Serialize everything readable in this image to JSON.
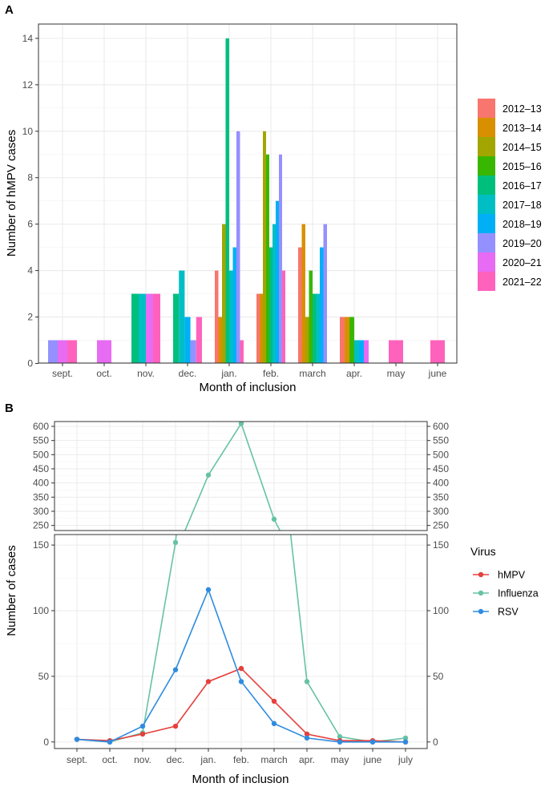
{
  "chart_data": [
    {
      "panel": "A",
      "type": "bar",
      "xlabel": "Month of inclusion",
      "ylabel": "Number of hMPV cases",
      "ylim": [
        0,
        14.6
      ],
      "yticks": [
        0,
        2,
        4,
        6,
        8,
        10,
        12,
        14
      ],
      "categories": [
        "sept.",
        "oct.",
        "nov.",
        "dec.",
        "jan.",
        "feb.",
        "march",
        "apr.",
        "may",
        "june"
      ],
      "series": [
        {
          "name": "2012–13",
          "color": "#F8766D",
          "values": [
            0,
            0,
            0,
            0,
            4,
            3,
            5,
            2,
            0,
            0
          ]
        },
        {
          "name": "2013–14",
          "color": "#D89000",
          "values": [
            0,
            0,
            0,
            0,
            2,
            3,
            6,
            2,
            0,
            0
          ]
        },
        {
          "name": "2014–15",
          "color": "#A3A500",
          "values": [
            0,
            0,
            0,
            0,
            6,
            10,
            2,
            0,
            0,
            0
          ]
        },
        {
          "name": "2015–16",
          "color": "#39B600",
          "values": [
            0,
            0,
            0,
            0,
            0,
            9,
            4,
            2,
            0,
            0
          ]
        },
        {
          "name": "2016–17",
          "color": "#00BF7D",
          "values": [
            0,
            0,
            3,
            3,
            14,
            5,
            3,
            0,
            0,
            0
          ]
        },
        {
          "name": "2017–18",
          "color": "#00BFC4",
          "values": [
            0,
            0,
            3,
            4,
            4,
            6,
            3,
            1,
            0,
            0
          ]
        },
        {
          "name": "2018–19",
          "color": "#00B0F6",
          "values": [
            0,
            0,
            0,
            2,
            5,
            7,
            5,
            1,
            0,
            0
          ]
        },
        {
          "name": "2019–20",
          "color": "#9590FF",
          "values": [
            1,
            0,
            0,
            1,
            10,
            9,
            6,
            0,
            0,
            0
          ]
        },
        {
          "name": "2020–21",
          "color": "#E76BF3",
          "values": [
            1,
            1,
            3,
            0,
            0,
            0,
            0,
            1,
            0,
            0
          ]
        },
        {
          "name": "2021–22",
          "color": "#FF62BC",
          "values": [
            1,
            0,
            3,
            2,
            1,
            4,
            0,
            0,
            1,
            1
          ]
        }
      ]
    },
    {
      "panel": "B",
      "type": "line",
      "xlabel": "Month of inclusion",
      "ylabel": "Number of cases",
      "legend_title": "Virus",
      "categories": [
        "sept.",
        "oct.",
        "nov.",
        "dec.",
        "jan.",
        "feb.",
        "march",
        "apr.",
        "may",
        "june",
        "july"
      ],
      "upper_ylim": [
        232,
        617
      ],
      "upper_yticks": [
        250,
        300,
        350,
        400,
        450,
        500,
        550,
        600
      ],
      "lower_ylim": [
        -5,
        158
      ],
      "lower_yticks": [
        0,
        50,
        100,
        150
      ],
      "series": [
        {
          "name": "hMPV",
          "color": "#E5403B",
          "values": [
            2,
            1,
            6,
            12,
            46,
            56,
            31,
            6,
            1,
            1,
            0
          ]
        },
        {
          "name": "Influenza",
          "color": "#66C2A5",
          "values": [
            2,
            0,
            7,
            152,
            428,
            610,
            272,
            46,
            4,
            0,
            3
          ]
        },
        {
          "name": "RSV",
          "color": "#2F8BE0",
          "values": [
            2,
            0,
            12,
            55,
            116,
            46,
            14,
            3,
            0,
            0,
            0
          ]
        }
      ]
    }
  ]
}
